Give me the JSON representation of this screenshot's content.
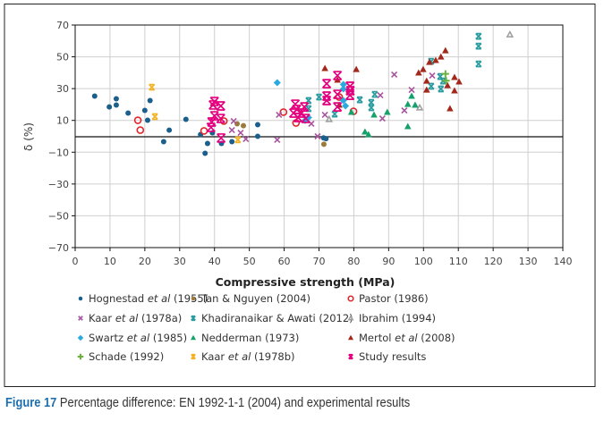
{
  "chart_data": {
    "type": "scatter",
    "title": "",
    "xlabel": "Compressive strength (MPa)",
    "ylabel": "δ (%)",
    "xlim": [
      0,
      140
    ],
    "ylim": [
      -70,
      70
    ],
    "xticks": [
      0,
      10,
      20,
      30,
      40,
      50,
      60,
      70,
      80,
      90,
      100,
      110,
      120,
      130,
      140
    ],
    "yticks": [
      70,
      50,
      30,
      10,
      -10,
      -30,
      -50,
      -70
    ],
    "ytick_labels": [
      "70",
      "50",
      "30",
      "10",
      "−10",
      "−30",
      "−50",
      "−70"
    ],
    "grid": true,
    "reference_line_y": 0,
    "legend_placement": "bottom",
    "series": [
      {
        "name": "Hognestad et al (1955)",
        "label": [
          [
            "Hognestad ",
            false
          ],
          [
            "et al",
            true
          ],
          [
            " (1955)",
            false
          ]
        ],
        "marker": "dot",
        "color": "#1b5f8c",
        "points": [
          [
            5.6,
            25.3
          ],
          [
            9.8,
            18.5
          ],
          [
            11.8,
            23.6
          ],
          [
            11.8,
            19.7
          ],
          [
            15.2,
            14.6
          ],
          [
            20,
            16.3
          ],
          [
            21.5,
            22.5
          ],
          [
            20.8,
            10.1
          ],
          [
            25.4,
            -3.4
          ],
          [
            27,
            3.9
          ],
          [
            31.8,
            10.7
          ],
          [
            36,
            1.1
          ],
          [
            37.3,
            -10.7
          ],
          [
            38,
            -4.5
          ],
          [
            39.4,
            2.2
          ],
          [
            42,
            -4.5
          ],
          [
            45,
            -3.4
          ],
          [
            52.4,
            7.3
          ],
          [
            52.4,
            0
          ],
          [
            71.3,
            -1
          ],
          [
            72,
            -1.5
          ]
        ]
      },
      {
        "name": "Tan & Nguyen (2004)",
        "label": [
          [
            "Tan & Nguyen (2004)",
            false
          ]
        ],
        "marker": "dot",
        "color": "#9a7b3c",
        "points": [
          [
            46.5,
            7.9
          ],
          [
            48.3,
            6.7
          ],
          [
            71.4,
            -5
          ]
        ]
      },
      {
        "name": "Pastor (1986)",
        "label": [
          [
            "Pastor (1986)",
            false
          ]
        ],
        "marker": "open-circle",
        "color": "#e0262b",
        "points": [
          [
            18,
            10.1
          ],
          [
            18.7,
            3.9
          ],
          [
            37,
            3.4
          ],
          [
            42.7,
            9.6
          ],
          [
            59.8,
            15.2
          ],
          [
            63.4,
            8.4
          ],
          [
            75.8,
            24.7
          ],
          [
            79.9,
            15.7
          ]
        ]
      },
      {
        "name": "Kaar et al (1978a)",
        "label": [
          [
            "Kaar ",
            false
          ],
          [
            "et al",
            true
          ],
          [
            " (1978a)",
            false
          ]
        ],
        "marker": "x",
        "color": "#a8559f",
        "points": [
          [
            45.5,
            9.6
          ],
          [
            45,
            3.9
          ],
          [
            47.5,
            2.2
          ],
          [
            49,
            -1.7
          ],
          [
            58.5,
            13.5
          ],
          [
            58,
            -2.2
          ],
          [
            67.8,
            7.9
          ],
          [
            69.6,
            0
          ],
          [
            71.7,
            13.5
          ],
          [
            78.5,
            28
          ],
          [
            87.6,
            25.8
          ],
          [
            88.2,
            11.2
          ],
          [
            91.6,
            38.8
          ],
          [
            94.5,
            16.3
          ],
          [
            96.6,
            29.2
          ],
          [
            102.5,
            38.2
          ]
        ]
      },
      {
        "name": "Khadiranaikar & Awati (2012)",
        "label": [
          [
            "Khadiranaikar & Awati (2012)",
            false
          ]
        ],
        "marker": "hourglass",
        "color": "#2a9c9f",
        "points": [
          [
            67,
            22.5
          ],
          [
            67,
            17.4
          ],
          [
            70,
            24.7
          ],
          [
            74.5,
            14
          ],
          [
            81.7,
            23
          ],
          [
            86,
            26.4
          ],
          [
            85,
            21.3
          ],
          [
            85,
            18
          ],
          [
            102.2,
            47.2
          ],
          [
            102.2,
            31.5
          ],
          [
            104.8,
            37.6
          ],
          [
            105.6,
            34.8
          ],
          [
            105,
            29.8
          ],
          [
            115.8,
            62.9
          ],
          [
            115.8,
            56.7
          ],
          [
            115.8,
            45.5
          ]
        ]
      },
      {
        "name": "Ibrahim (1994)",
        "label": [
          [
            "Ibrahim (1994)",
            false
          ]
        ],
        "marker": "open-triangle",
        "color": "#9c9c9c",
        "points": [
          [
            124.8,
            64
          ],
          [
            98.9,
            18
          ],
          [
            72.9,
            10.7
          ]
        ]
      },
      {
        "name": "Swartz et al (1985)",
        "label": [
          [
            "Swartz ",
            false
          ],
          [
            "et al",
            true
          ],
          [
            " (1985)",
            false
          ]
        ],
        "marker": "diamond",
        "color": "#2aa9e1",
        "points": [
          [
            58,
            33.7
          ],
          [
            77,
            32.6
          ],
          [
            77,
            29.8
          ],
          [
            77,
            22.5
          ],
          [
            77.6,
            19.1
          ],
          [
            67,
            11.8
          ],
          [
            66,
            10
          ]
        ]
      },
      {
        "name": "Nedderman (1973)",
        "label": [
          [
            "Nedderman (1973)",
            false
          ]
        ],
        "marker": "triangle",
        "color": "#16a16b",
        "points": [
          [
            79.3,
            15.2
          ],
          [
            83.2,
            2.8
          ],
          [
            84.2,
            1.1
          ],
          [
            85.8,
            13.5
          ],
          [
            89.6,
            15.2
          ],
          [
            95.5,
            20.2
          ],
          [
            96.6,
            25.3
          ],
          [
            97.6,
            19.7
          ],
          [
            95.5,
            6.2
          ]
        ]
      },
      {
        "name": "Mertol et al (2008)",
        "label": [
          [
            "Mertol ",
            false
          ],
          [
            "et al",
            true
          ],
          [
            " (2008)",
            false
          ]
        ],
        "marker": "triangle",
        "color": "#a3281c",
        "points": [
          [
            71.7,
            42.7
          ],
          [
            80.7,
            42.1
          ],
          [
            75.3,
            35.4
          ],
          [
            75.8,
            19.7
          ],
          [
            98.6,
            39.9
          ],
          [
            99.9,
            42.1
          ],
          [
            100.9,
            34.8
          ],
          [
            100.9,
            29.2
          ],
          [
            101.7,
            46.6
          ],
          [
            103.5,
            47.8
          ],
          [
            105,
            50
          ],
          [
            106.3,
            53.9
          ],
          [
            106.9,
            32
          ],
          [
            108.9,
            37.1
          ],
          [
            110.2,
            34.3
          ],
          [
            108.9,
            28.7
          ],
          [
            107.6,
            17.4
          ]
        ]
      },
      {
        "name": "Schade (1992)",
        "label": [
          [
            "Schade (1992)",
            false
          ]
        ],
        "marker": "plus",
        "color": "#6cb33e",
        "points": [
          [
            106.3,
            39.3
          ],
          [
            106.5,
            35
          ]
        ]
      },
      {
        "name": "Kaar et al (1978b)",
        "label": [
          [
            "Kaar ",
            false
          ],
          [
            "et al",
            true
          ],
          [
            " (1978b)",
            false
          ]
        ],
        "marker": "hourglass",
        "color": "#f4b223",
        "points": [
          [
            22,
            30.9
          ],
          [
            22.9,
            12.4
          ],
          [
            46.7,
            -2.2
          ]
        ]
      },
      {
        "name": "Study results",
        "label": [
          [
            "Study results",
            false
          ]
        ],
        "marker": "hourglass-large",
        "color": "#e4007f",
        "points": [
          [
            40,
            21.9
          ],
          [
            39.6,
            19.7
          ],
          [
            41.8,
            19.1
          ],
          [
            40,
            12.9
          ],
          [
            41.8,
            11.2
          ],
          [
            39.2,
            9
          ],
          [
            39,
            5.6
          ],
          [
            41.9,
            -1.1
          ],
          [
            63.2,
            20.2
          ],
          [
            63.6,
            16.9
          ],
          [
            65,
            14.6
          ],
          [
            65.8,
            18.5
          ],
          [
            64,
            11.8
          ],
          [
            66.2,
            11.2
          ],
          [
            62.7,
            14.6
          ],
          [
            72.2,
            33.1
          ],
          [
            72.2,
            25.3
          ],
          [
            72.2,
            22.5
          ],
          [
            75.3,
            38.2
          ],
          [
            75.3,
            26.4
          ],
          [
            75.3,
            18.5
          ],
          [
            78.9,
            31.5
          ],
          [
            78.9,
            25.8
          ],
          [
            79,
            28.7
          ]
        ]
      }
    ]
  },
  "caption": {
    "figure_number": "Figure 17",
    "text": " Percentage difference: EN 1992-1-1 (2004) and experimental results"
  }
}
